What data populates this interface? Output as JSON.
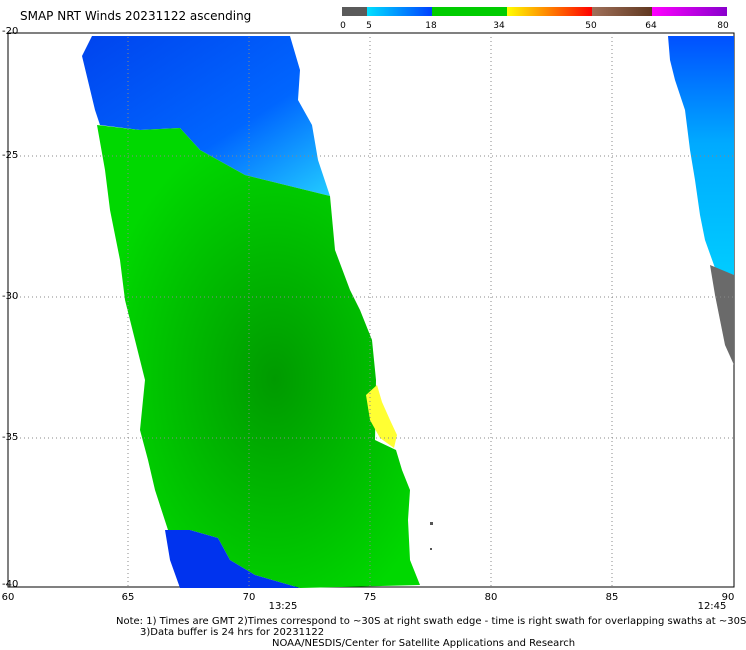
{
  "title": "SMAP NRT Winds 20231122 ascending",
  "legend": {
    "ticks": [
      "0",
      "5",
      "18",
      "34",
      "50",
      "64",
      "80"
    ],
    "colors": [
      "#5a5a5a",
      "#00a0ff",
      "#0050ff",
      "#00cc00",
      "#ffff33",
      "#ff9900",
      "#ff0000",
      "#9e6b4e",
      "#ff00ff",
      "#8800cc"
    ]
  },
  "axes": {
    "y_labels": [
      "-20",
      "-25",
      "-30",
      "-35",
      "-40"
    ],
    "x_labels": [
      "60",
      "65",
      "70",
      "75",
      "80",
      "85",
      "90"
    ]
  },
  "swath_times": [
    "13:25",
    "12:45"
  ],
  "notes": {
    "line1": "Note: 1) Times are GMT 2)Times correspond to ~30S at right swath edge - time is right swath for overlapping swaths at ~30S",
    "line2": "3)Data buffer is 24 hrs for 20231122",
    "line3": "NOAA/NESDIS/Center for Satellite Applications and Research"
  }
}
